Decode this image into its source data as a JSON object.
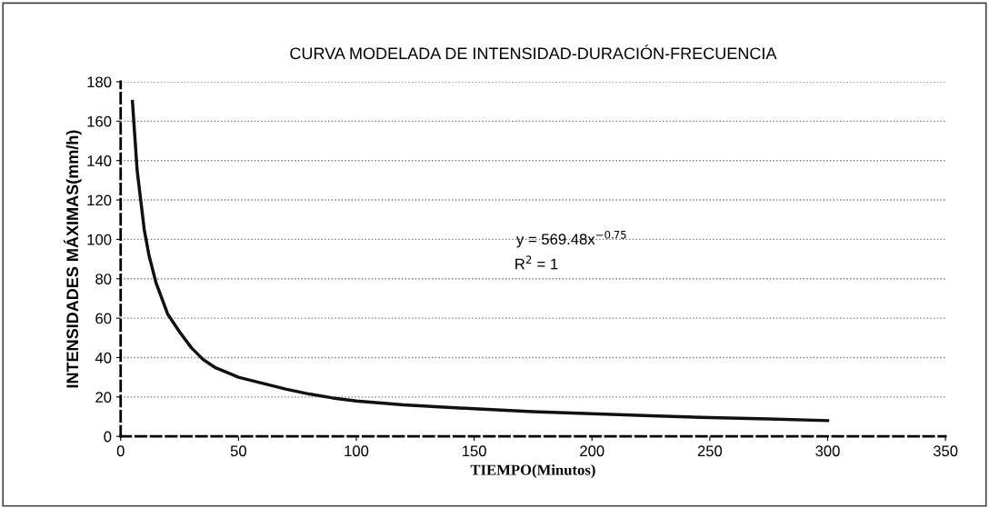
{
  "chart_data": {
    "type": "line",
    "title": "CURVA MODELADA DE INTENSIDAD-DURACIÓN-FRECUENCIA",
    "xlabel": "TIEMPO(Minutos)",
    "ylabel": "INTENSIDADES MÁXIMAS(mm/h)",
    "series": [
      {
        "color": "#111111",
        "x": [
          5,
          7,
          10,
          12,
          15,
          20,
          25,
          30,
          35,
          40,
          50,
          60,
          70,
          80,
          90,
          100,
          120,
          150,
          175,
          200,
          225,
          250,
          275,
          300
        ],
        "values": [
          170,
          135,
          105,
          92,
          78,
          62,
          53,
          45,
          39,
          35,
          30,
          27,
          24,
          21.5,
          19.5,
          18,
          16,
          14,
          12.5,
          11.5,
          10.5,
          9.5,
          8.8,
          8
        ]
      }
    ],
    "xlim": [
      0,
      350
    ],
    "xticks": [
      0,
      50,
      100,
      150,
      200,
      250,
      300,
      350
    ],
    "ylim": [
      0,
      180
    ],
    "yticks": [
      0,
      20,
      40,
      60,
      80,
      100,
      120,
      140,
      160,
      180
    ],
    "grid": "y",
    "marker": "none",
    "line_style": "solid",
    "annotations": [
      "y = 569.48x$^{−0.75}$",
      "R$^{2}$ = 1"
    ]
  }
}
